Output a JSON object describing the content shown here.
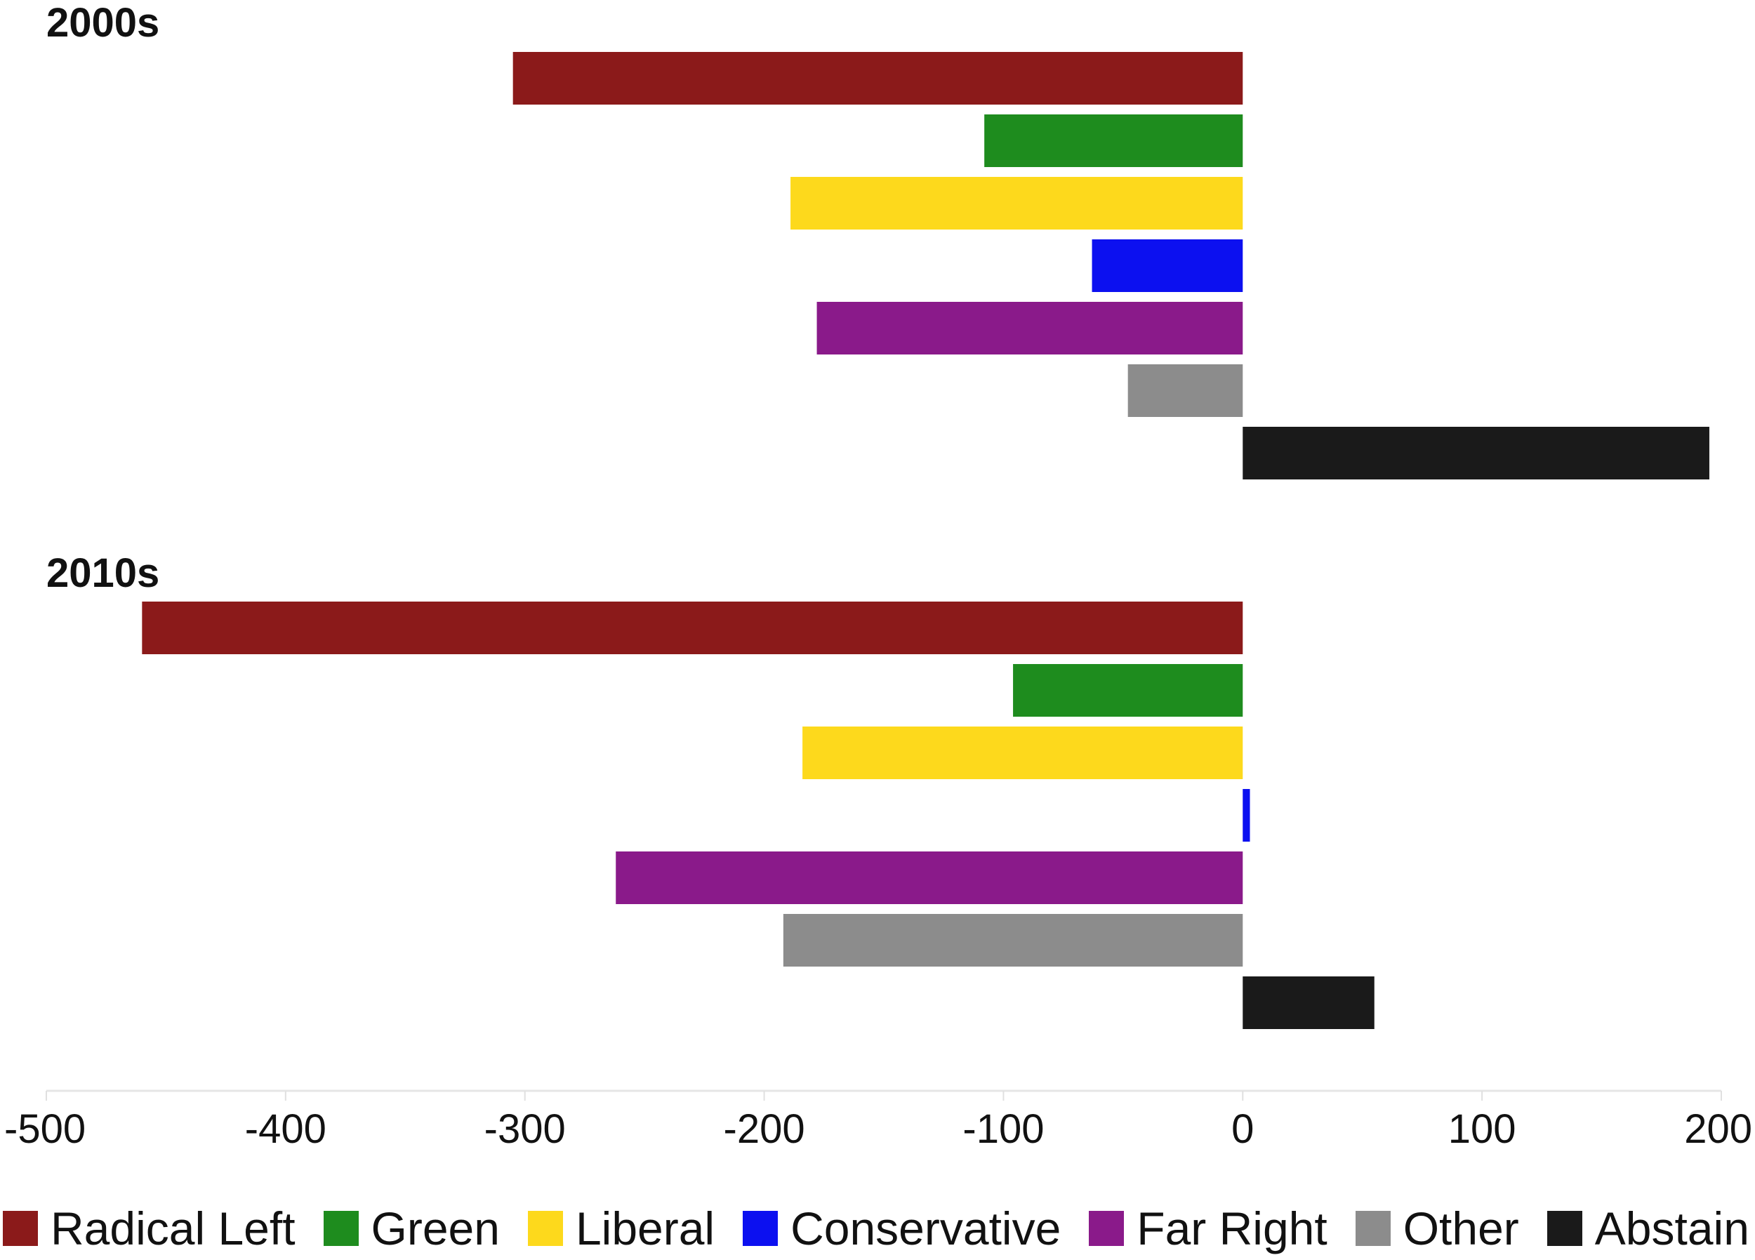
{
  "chart_data": {
    "type": "bar",
    "orientation": "horizontal",
    "xlim": [
      -500,
      200
    ],
    "xticks": [
      -500,
      -400,
      -300,
      -200,
      -100,
      0,
      100,
      200
    ],
    "categories": [
      "Radical Left",
      "Green",
      "Liberal",
      "Conservative",
      "Far Right",
      "Other",
      "Abstain"
    ],
    "colors": [
      "#8b1a1a",
      "#1e8c1e",
      "#fdd91c",
      "#0c10f0",
      "#8a1a8a",
      "#8c8c8c",
      "#1a1a1a"
    ],
    "panels": [
      {
        "title": "2000s",
        "values": [
          -305,
          -108,
          -189,
          -63,
          -178,
          -48,
          195
        ]
      },
      {
        "title": "2010s",
        "values": [
          -460,
          -96,
          -184,
          3,
          -262,
          -192,
          55
        ]
      }
    ],
    "legend": {
      "placement": "bottom",
      "items": [
        "Radical Left",
        "Green",
        "Liberal",
        "Conservative",
        "Far Right",
        "Other",
        "Abstain"
      ]
    }
  }
}
